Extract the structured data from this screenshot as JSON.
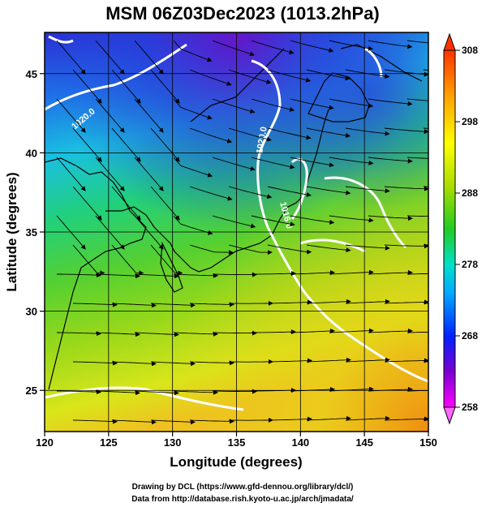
{
  "title": "MSM 06Z03Dec2023 (1013.2hPa)",
  "credits": [
    "Drawing by DCL (https://www.gfd-dennou.org/library/dcl/)",
    "Data from http://database.rish.kyoto-u.ac.jp/arch/jmadata/"
  ],
  "chart_data": {
    "type": "heatmap",
    "title": "MSM 06Z03Dec2023 (1013.2hPa)",
    "xlabel": "Longitude (degrees)",
    "ylabel": "Latitude  (degrees)",
    "xlim": [
      120,
      150
    ],
    "ylim": [
      22.4,
      47.6
    ],
    "xticks": [
      120,
      125,
      130,
      135,
      140,
      145,
      150
    ],
    "yticks": [
      25,
      30,
      35,
      40,
      45
    ],
    "grid": true,
    "colorbar": {
      "ticks": [
        258,
        268,
        278,
        288,
        298,
        308
      ],
      "range": [
        258,
        308
      ],
      "colors": [
        "#ff00ff",
        "#5500cc",
        "#0022ff",
        "#00aaff",
        "#00ddcc",
        "#22cc22",
        "#aadd00",
        "#ffff00",
        "#ffaa00",
        "#ff4400"
      ]
    },
    "contour_labels": [
      "1020.0",
      "1020.0",
      "1016.0"
    ]
  }
}
